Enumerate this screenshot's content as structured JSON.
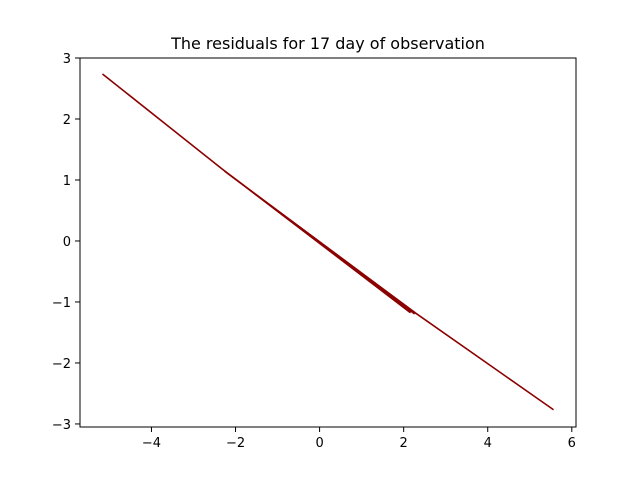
{
  "chart_data": {
    "type": "line",
    "title": "The residuals for 17 day of observation",
    "xlabel": "",
    "ylabel": "",
    "xlim": [
      -5.7,
      6.1
    ],
    "ylim": [
      -3.05,
      3.0
    ],
    "x_ticks": [
      -4,
      -2,
      0,
      2,
      4,
      6
    ],
    "x_tick_labels": [
      "−4",
      "−2",
      "0",
      "2",
      "4",
      "6"
    ],
    "y_ticks": [
      -3,
      -2,
      -1,
      0,
      1,
      2,
      3
    ],
    "y_tick_labels": [
      "−3",
      "−2",
      "−1",
      "0",
      "1",
      "2",
      "3"
    ],
    "grid": false,
    "series": [
      {
        "color": "#8b0000",
        "x": [
          -5.15,
          -2.3,
          2.15,
          -2.3,
          2.25,
          -2.25,
          2.3,
          5.55
        ],
        "y": [
          2.73,
          1.17,
          -1.17,
          1.17,
          -1.19,
          1.14,
          -1.19,
          -2.76
        ]
      }
    ]
  }
}
